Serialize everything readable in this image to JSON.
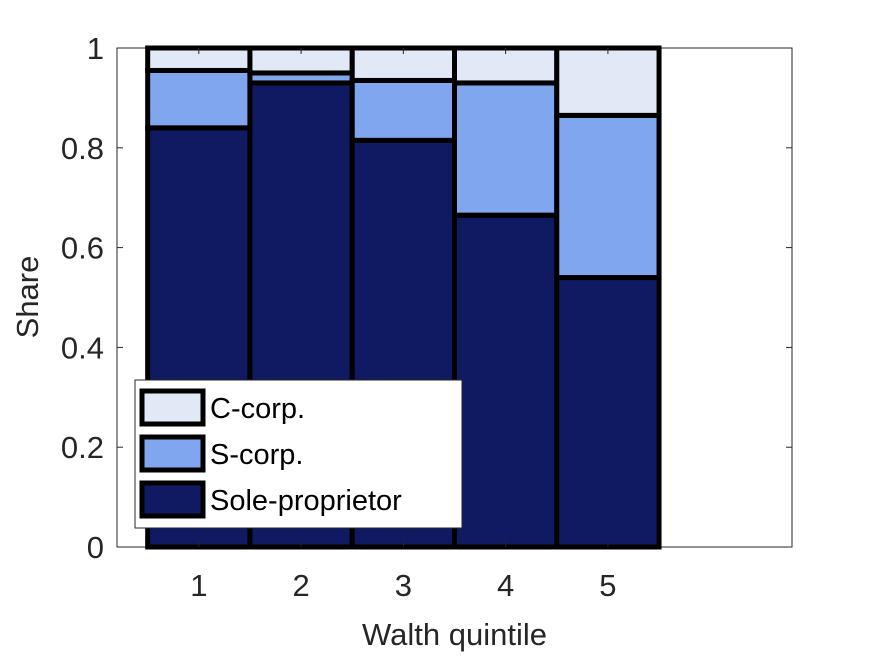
{
  "chart_data": {
    "type": "bar",
    "stacked": true,
    "title": "",
    "xlabel": "Walth quintile",
    "ylabel": "Share",
    "categories": [
      "1",
      "2",
      "3",
      "4",
      "5"
    ],
    "xlim": [
      0.2,
      6.8
    ],
    "ylim": [
      0,
      1
    ],
    "yticks": [
      0,
      0.2,
      0.4,
      0.6,
      0.8,
      1
    ],
    "ytick_labels": [
      "0",
      "0.2",
      "0.4",
      "0.6",
      "0.8",
      "1"
    ],
    "grid": false,
    "legend_position": "bottom-left",
    "series": [
      {
        "name": "Sole-proprietor",
        "color": "#0f1a63",
        "values": [
          0.84,
          0.93,
          0.815,
          0.665,
          0.54
        ]
      },
      {
        "name": "S-corp.",
        "color": "#7fa6ee",
        "values": [
          0.115,
          0.02,
          0.12,
          0.265,
          0.325
        ]
      },
      {
        "name": "C-corp.",
        "color": "#e2e9f6",
        "values": [
          0.045,
          0.05,
          0.065,
          0.07,
          0.135
        ]
      }
    ]
  }
}
